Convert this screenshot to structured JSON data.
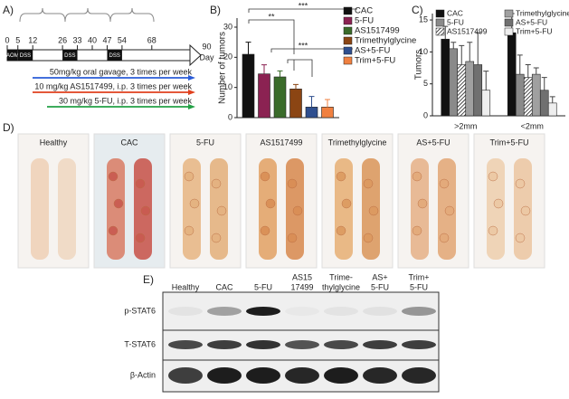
{
  "panel_labels": [
    "A)",
    "B)",
    "C)",
    "D)",
    "E)"
  ],
  "timeline": {
    "days": [
      0,
      5,
      12,
      26,
      33,
      40,
      47,
      54,
      68,
      90
    ],
    "unit": "Day",
    "blocks": [
      {
        "label": "AOM",
        "from": 0,
        "to": 5
      },
      {
        "label": "DSS",
        "from": 5,
        "to": 12
      },
      {
        "label": "DSS",
        "from": 26,
        "to": 33
      },
      {
        "label": "DSS",
        "from": 47,
        "to": 54
      }
    ],
    "treatments": [
      {
        "label": "50mg/kg oral gavage, 3 times per week",
        "color": "#2a5bd7"
      },
      {
        "label": "10 mg/kg AS1517499, i.p. 3 times per week",
        "color": "#e0401e"
      },
      {
        "label": "30 mg/kg 5-FU, i.p. 3 times per week",
        "color": "#22a045"
      }
    ]
  },
  "chart_data": [
    {
      "type": "bar",
      "y_label": "Number of tumors",
      "ylim": [
        0,
        33
      ],
      "yticks": [
        0,
        10,
        20,
        30
      ],
      "series": [
        {
          "name": "CAC",
          "color": "#111111",
          "values": [
            21
          ],
          "errors": [
            4
          ]
        },
        {
          "name": "5-FU",
          "color": "#8b2252",
          "values": [
            14.5
          ],
          "errors": [
            3
          ]
        },
        {
          "name": "AS1517499",
          "color": "#3a6b2a",
          "values": [
            13.5
          ],
          "errors": [
            2
          ]
        },
        {
          "name": "Trimethylglycine",
          "color": "#8b4513",
          "values": [
            9.5
          ],
          "errors": [
            1.5
          ]
        },
        {
          "name": "AS+5-FU",
          "color": "#2f4f8f",
          "values": [
            3.5
          ],
          "errors": [
            3.5
          ]
        },
        {
          "name": "Trim+5-FU",
          "color": "#f08040",
          "values": [
            3.5
          ],
          "errors": [
            2.5
          ]
        }
      ],
      "annotations": [
        "**",
        "***",
        "***"
      ]
    },
    {
      "type": "bar",
      "y_label": "Tumors",
      "categories": [
        ">2mm",
        "<2mm"
      ],
      "ylim": [
        0,
        16
      ],
      "yticks": [
        0,
        5,
        10,
        15
      ],
      "series": [
        {
          "name": "CAC",
          "color": "#111111",
          "values": [
            12,
            13
          ],
          "errors": [
            2,
            3
          ]
        },
        {
          "name": "5-FU",
          "color": "#8a8a8a",
          "values": [
            10.5,
            6.5
          ],
          "errors": [
            1,
            3
          ]
        },
        {
          "name": "AS1517499",
          "color": "#555555",
          "hatch": true,
          "values": [
            8,
            6
          ],
          "errors": [
            3,
            2
          ]
        },
        {
          "name": "Trimethylglycine",
          "color": "#a0a0a0",
          "values": [
            8.5,
            6.5
          ],
          "errors": [
            3,
            1
          ]
        },
        {
          "name": "AS+5-FU",
          "color": "#707070",
          "values": [
            8,
            4
          ],
          "errors": [
            5,
            2
          ]
        },
        {
          "name": "Trim+5-FU",
          "color": "#eeeeee",
          "values": [
            4,
            2
          ],
          "errors": [
            3,
            1
          ]
        }
      ]
    }
  ],
  "photos": {
    "labels": [
      "Healthy",
      "CAC",
      "5-FU",
      "AS1517499",
      "Trimethylglycine",
      "AS+5-FU",
      "Trim+5-FU"
    ]
  },
  "blot": {
    "lanes": [
      [
        "Healthy"
      ],
      [
        "CAC"
      ],
      [
        "5-FU"
      ],
      [
        "AS15",
        "17499"
      ],
      [
        "Trime-",
        "thylglycine"
      ],
      [
        "AS+",
        "5-FU"
      ],
      [
        "Trim+",
        "5-FU"
      ]
    ],
    "rows": [
      "p-STAT6",
      "T-STAT6",
      "β-Actin"
    ]
  }
}
